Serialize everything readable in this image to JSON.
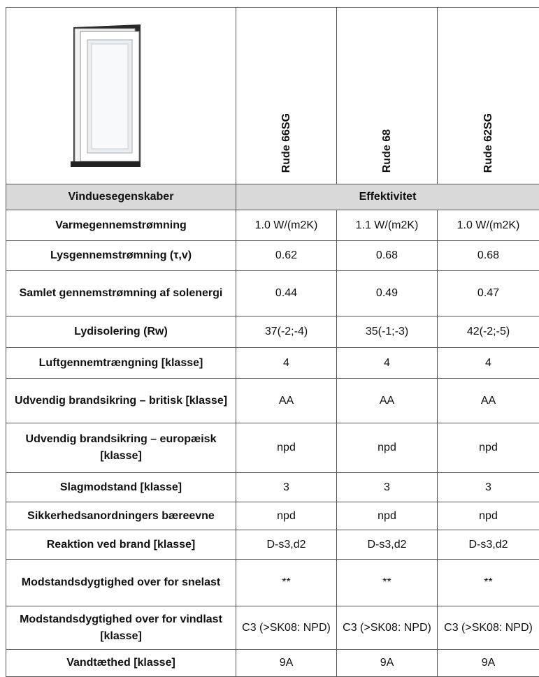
{
  "header": {
    "products": [
      "Rude 66SG",
      "Rude 68",
      "Rude 62SG"
    ]
  },
  "table": {
    "header": [
      "Vinduesegenskaber",
      "Effektivitet"
    ],
    "rows": [
      [
        "Varmegennemstrømning",
        "1.0 W/(m2K)",
        "1.1 W/(m2K)",
        "1.0 W/(m2K)"
      ],
      [
        "Lysgennemstrømning (τ,v)",
        "0.62",
        "0.68",
        "0.68"
      ],
      [
        "Samlet gennemstrømning af solenergi",
        "0.44",
        "0.49",
        "0.47"
      ],
      [
        "Lydisolering (Rw)",
        "37(-2;-4)",
        "35(-1;-3)",
        "42(-2;-5)"
      ],
      [
        "Luftgennemtrængning [klasse]",
        "4",
        "4",
        "4"
      ],
      [
        "Udvendig brandsikring – britisk [klasse]",
        "AA",
        "AA",
        "AA"
      ],
      [
        "Udvendig brandsikring – europæisk [klasse]",
        "npd",
        "npd",
        "npd"
      ],
      [
        "Slagmodstand [klasse]",
        "3",
        "3",
        "3"
      ],
      [
        "Sikkerhedsanordningers bæreevne",
        "npd",
        "npd",
        "npd"
      ],
      [
        "Reaktion ved brand [klasse]",
        "D-s3,d2",
        "D-s3,d2",
        "D-s3,d2"
      ],
      [
        "Modstandsdygtighed over for snelast",
        "**",
        "**",
        "**"
      ],
      [
        "Modstandsdygtighed over for vindlast [klasse]",
        "C3 (>SK08: NPD)",
        "C3 (>SK08: NPD)",
        "C3 (>SK08: NPD)"
      ],
      [
        "Vandtæthed [klasse]",
        "9A",
        "9A",
        "9A"
      ]
    ]
  }
}
